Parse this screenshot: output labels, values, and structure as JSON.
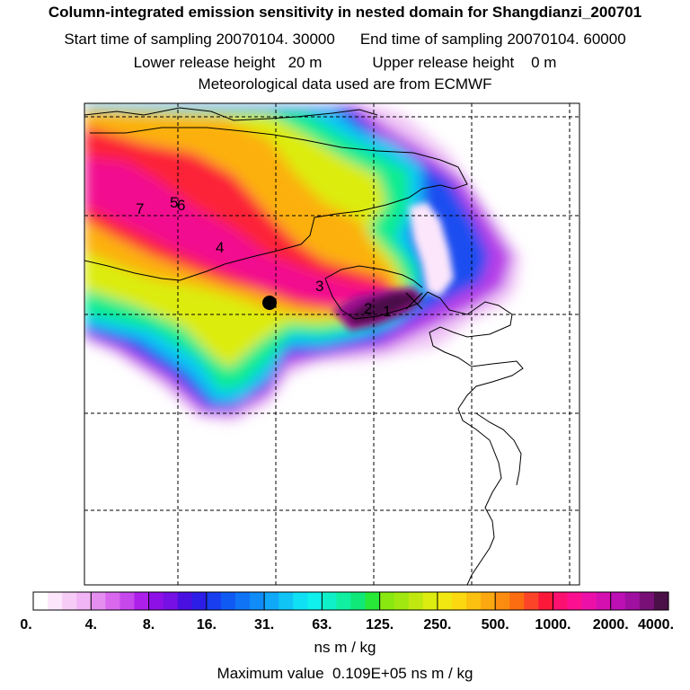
{
  "header": {
    "title": "Column-integrated emission sensitivity in nested domain for Shangdianzi_200701",
    "start_label": "Start time of sampling",
    "start_value": "20070104. 30000",
    "end_label": "End time of sampling",
    "end_value": "20070104. 60000",
    "lower_label": "Lower release height",
    "lower_value": "20 m",
    "upper_label": "Upper release height",
    "upper_value": "0 m",
    "met_line": "Meteorological data used are from ECMWF"
  },
  "chart_data": {
    "type": "heatmap",
    "title": "Column-integrated emission sensitivity in nested domain for Shangdianzi_200701",
    "colorbar": {
      "tick_labels": [
        "0.",
        "4.",
        "8.",
        "16.",
        "31.",
        "63.",
        "125.",
        "250.",
        "500.",
        "1000.",
        "2000.",
        "4000."
      ],
      "colors": [
        "#ffffff",
        "#fbe6fb",
        "#f6ccf6",
        "#f1b4f4",
        "#e58ef0",
        "#d968ee",
        "#c647ec",
        "#ad20ea",
        "#8f10e6",
        "#7710e4",
        "#4a10e2",
        "#2c1ee6",
        "#183ef0",
        "#105af4",
        "#1074f6",
        "#108cf8",
        "#10a8f8",
        "#10c4f6",
        "#10e0f4",
        "#10f0ec",
        "#10f0c8",
        "#10f0a0",
        "#10e878",
        "#28e838",
        "#88e810",
        "#a0e810",
        "#c0e810",
        "#dcec10",
        "#f0e810",
        "#fcd810",
        "#fcc010",
        "#fca810",
        "#fc8c10",
        "#fc6c10",
        "#fc4428",
        "#fc1838",
        "#fc1070",
        "#fc1090",
        "#ec10a8",
        "#d410b0",
        "#bc10b4",
        "#a010a0",
        "#781078",
        "#4c1048"
      ],
      "units": "ns m / kg"
    },
    "max_label": "Maximum value",
    "max_value": "0.109E+05",
    "max_units": "ns m / kg",
    "plume_labels": [
      "1",
      "2",
      "3",
      "4",
      "5",
      "6",
      "7"
    ],
    "station_marker": "filled circle",
    "max_marker": "x"
  }
}
